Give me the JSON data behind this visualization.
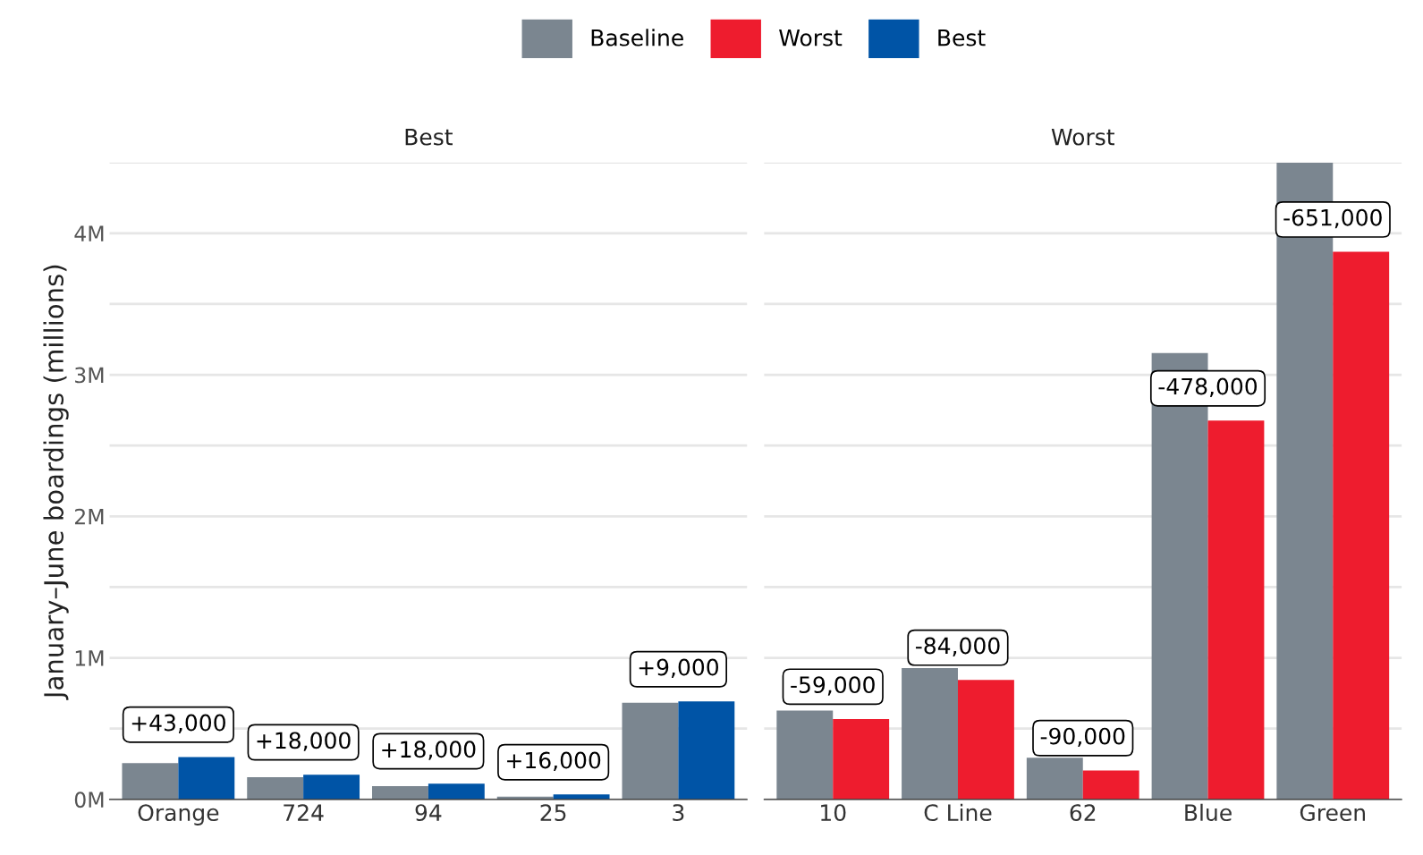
{
  "chart_data": [
    {
      "type": "bar",
      "title": "Best",
      "ylabel": "January–June boardings (millions)",
      "categories": [
        "Orange",
        "724",
        "94",
        "25",
        "3"
      ],
      "series": [
        {
          "name": "Baseline",
          "color": "#7b8690",
          "values": [
            0.257,
            0.157,
            0.094,
            0.019,
            0.683
          ]
        },
        {
          "name": "Best",
          "color": "#0054a6",
          "values": [
            0.3,
            0.175,
            0.112,
            0.035,
            0.692
          ]
        }
      ],
      "ylim": [
        0,
        4.5
      ],
      "yticks": [
        {
          "value": 0,
          "label": "0M"
        },
        {
          "value": 0.5,
          "label": null
        },
        {
          "value": 1,
          "label": "1M"
        },
        {
          "value": 1.5,
          "label": null
        },
        {
          "value": 2,
          "label": "2M"
        },
        {
          "value": 2.5,
          "label": null
        },
        {
          "value": 3,
          "label": "3M"
        },
        {
          "value": 3.5,
          "label": null
        },
        {
          "value": 4,
          "label": "4M"
        },
        {
          "value": 4.5,
          "label": null
        }
      ],
      "grid": "y",
      "legend": "top",
      "annotations": [
        {
          "text": "+43,000",
          "x": "Orange",
          "y": 0.3
        },
        {
          "text": "+18,000",
          "x": "724",
          "y": 0.175
        },
        {
          "text": "+18,000",
          "x": "94",
          "y": 0.112
        },
        {
          "text": "+16,000",
          "x": "25",
          "y": 0.035
        },
        {
          "text": "+9,000",
          "x": "3",
          "y": 0.692
        }
      ]
    },
    {
      "type": "bar",
      "title": "Worst",
      "categories": [
        "10",
        "C Line",
        "62",
        "Blue",
        "Green"
      ],
      "series": [
        {
          "name": "Baseline",
          "color": "#7b8690",
          "values": [
            0.627,
            0.928,
            0.295,
            3.154,
            4.5
          ]
        },
        {
          "name": "Worst",
          "color": "#ee1c2e",
          "values": [
            0.568,
            0.844,
            0.205,
            2.676,
            3.869
          ]
        }
      ],
      "ylim": [
        0,
        4.5
      ],
      "yticks": [
        0,
        0.5,
        1,
        1.5,
        2,
        2.5,
        3,
        3.5,
        4,
        4.5
      ],
      "grid": "y",
      "legend": "top",
      "tick_labels": "x",
      "annotations": [
        {
          "text": "-59,000",
          "x": "10",
          "y": 0.568
        },
        {
          "text": "-84,000",
          "x": "C Line",
          "y": 0.844
        },
        {
          "text": "-90,000",
          "x": "62",
          "y": 0.205
        },
        {
          "text": "-478,000",
          "x": "Blue",
          "y": 2.676
        },
        {
          "text": "-651,000",
          "x": "Green",
          "y": 3.869
        }
      ]
    }
  ]
}
